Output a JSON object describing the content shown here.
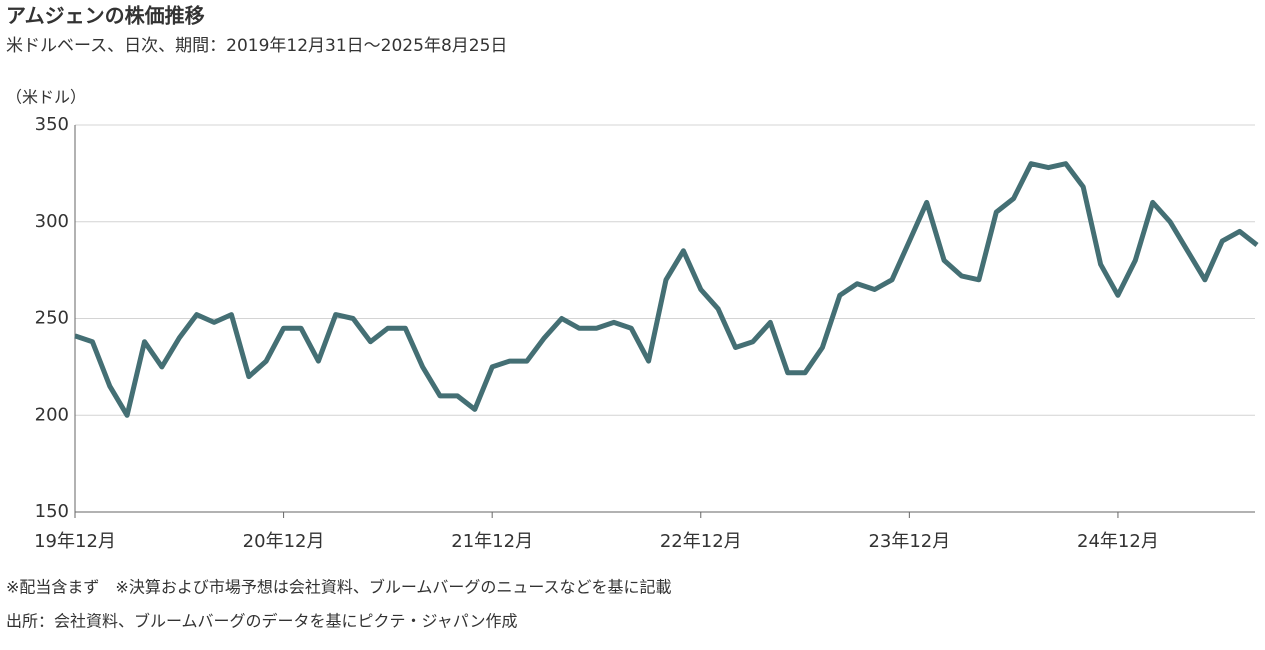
{
  "chart_data": {
    "type": "line",
    "title": "アムジェンの株価推移",
    "subtitle": "米ドルベース、日次、期間：2019年12月31日～2025年8月25日",
    "y_label": "（米ドル）",
    "notes": [
      "※配当含まず　※決算および市場予想は会社資料、ブルームバーグのニュースなどを基に記載",
      "出所：会社資料、ブルームバーグのデータを基にピクテ・ジャパン作成"
    ],
    "x": [
      "2019-12",
      "2020-01",
      "2020-02",
      "2020-03",
      "2020-04",
      "2020-05",
      "2020-06",
      "2020-07",
      "2020-08",
      "2020-09",
      "2020-10",
      "2020-11",
      "2020-12",
      "2021-01",
      "2021-02",
      "2021-03",
      "2021-04",
      "2021-05",
      "2021-06",
      "2021-07",
      "2021-08",
      "2021-09",
      "2021-10",
      "2021-11",
      "2021-12",
      "2022-01",
      "2022-02",
      "2022-03",
      "2022-04",
      "2022-05",
      "2022-06",
      "2022-07",
      "2022-08",
      "2022-09",
      "2022-10",
      "2022-11",
      "2022-12",
      "2023-01",
      "2023-02",
      "2023-03",
      "2023-04",
      "2023-05",
      "2023-06",
      "2023-07",
      "2023-08",
      "2023-09",
      "2023-10",
      "2023-11",
      "2023-12",
      "2024-01",
      "2024-02",
      "2024-03",
      "2024-04",
      "2024-05",
      "2024-06",
      "2024-07",
      "2024-08",
      "2024-09",
      "2024-10",
      "2024-11",
      "2024-12",
      "2025-01",
      "2025-02",
      "2025-03",
      "2025-04",
      "2025-05",
      "2025-06",
      "2025-07",
      "2025-08"
    ],
    "series": [
      {
        "name": "アムジェン",
        "color": "#446f74",
        "values": [
          241,
          238,
          215,
          200,
          238,
          225,
          240,
          252,
          248,
          252,
          220,
          228,
          245,
          245,
          228,
          252,
          250,
          238,
          245,
          245,
          225,
          210,
          210,
          203,
          225,
          228,
          228,
          240,
          250,
          245,
          245,
          248,
          245,
          228,
          270,
          285,
          265,
          255,
          235,
          238,
          248,
          222,
          222,
          235,
          262,
          268,
          265,
          270,
          290,
          310,
          280,
          272,
          270,
          305,
          312,
          330,
          328,
          330,
          318,
          278,
          262,
          280,
          310,
          300,
          285,
          270,
          290,
          295,
          288
        ]
      }
    ],
    "xlim": [
      "2019-12",
      "2025-08"
    ],
    "xticks": [
      {
        "value": "2019-12",
        "label": "19年12月"
      },
      {
        "value": "2020-12",
        "label": "20年12月"
      },
      {
        "value": "2021-12",
        "label": "21年12月"
      },
      {
        "value": "2022-12",
        "label": "22年12月"
      },
      {
        "value": "2023-12",
        "label": "23年12月"
      },
      {
        "value": "2024-12",
        "label": "24年12月"
      }
    ],
    "ylim": [
      150,
      350
    ],
    "yticks": [
      150,
      200,
      250,
      300,
      350
    ],
    "grid": true
  }
}
